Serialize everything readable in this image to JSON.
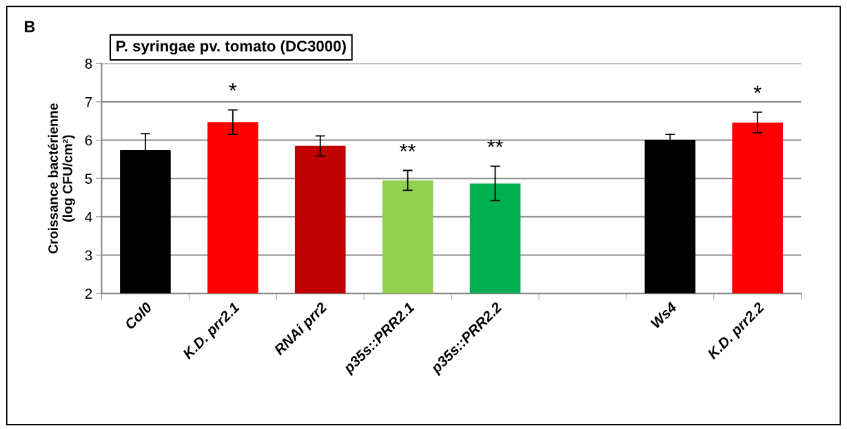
{
  "chart_data": {
    "type": "bar",
    "title": "P. syringae pv. tomato (DC3000)",
    "ylabel": "Croissance bactérienne\n(log CFU/cm²)",
    "categories": [
      "Col0",
      "K.D. prr2.1",
      "RNAi prr2",
      "p35s::PRR2.1",
      "p35s::PRR2.2",
      null,
      "Ws4",
      "K.D. prr2.2"
    ],
    "values": [
      5.74,
      6.47,
      5.85,
      4.95,
      4.87,
      null,
      6.01,
      6.46
    ],
    "errors": [
      0.43,
      0.32,
      0.26,
      0.26,
      0.45,
      null,
      0.14,
      0.27
    ],
    "colors": [
      "#000000",
      "#ff0000",
      "#c00000",
      "#92d050",
      "#00b050",
      null,
      "#000000",
      "#ff0000"
    ],
    "ylim": [
      2,
      8
    ],
    "yticks": [
      2,
      3,
      4,
      5,
      6,
      7,
      8
    ],
    "grid": "y",
    "annotations": [
      "B",
      {
        "text": "*",
        "x": "K.D. prr2.1",
        "y": 6.47
      },
      {
        "text": "**",
        "x": "p35s::PRR2.1",
        "y": 4.95
      },
      {
        "text": "**",
        "x": "p35s::PRR2.2",
        "y": 4.87
      },
      {
        "text": "*",
        "x": "K.D. prr2.2",
        "y": 6.46
      }
    ]
  }
}
